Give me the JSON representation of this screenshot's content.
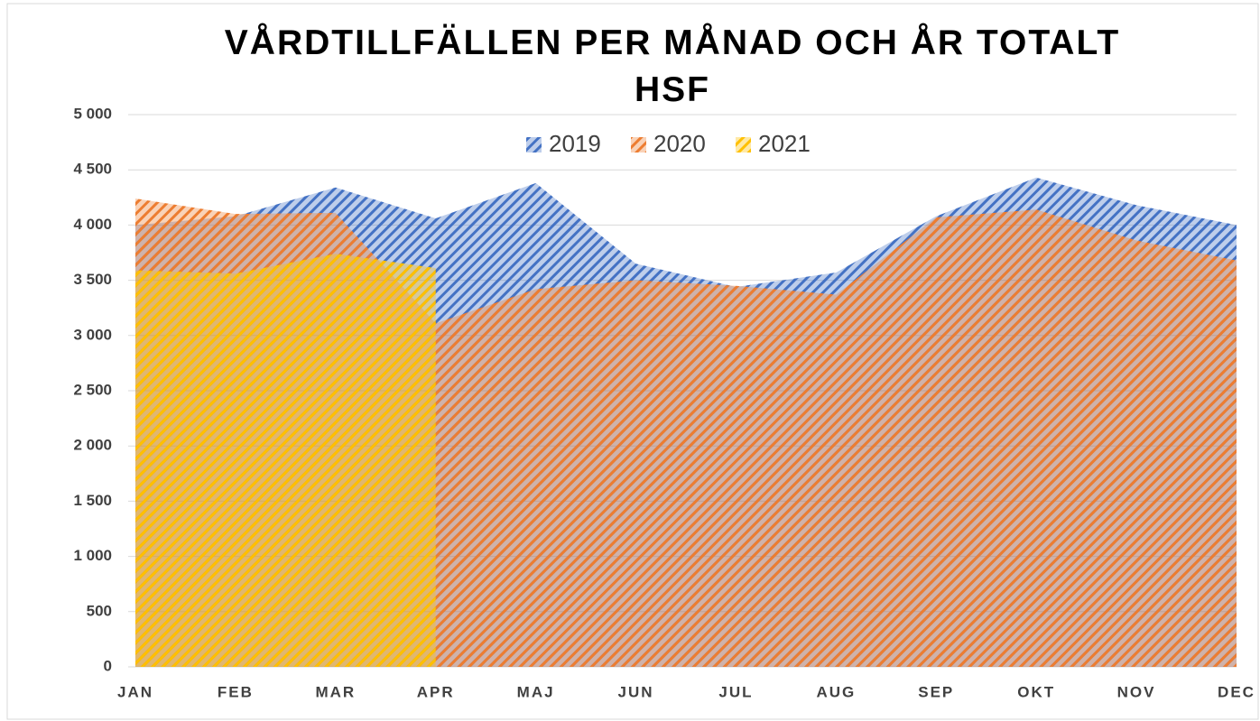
{
  "chart_data": {
    "type": "area",
    "title": "VÅRDTILLFÄLLEN PER MÅNAD OCH ÅR TOTALT HSF",
    "categories": [
      "JAN",
      "FEB",
      "MAR",
      "APR",
      "MAJ",
      "JUN",
      "JUL",
      "AUG",
      "SEP",
      "OKT",
      "NOV",
      "DEC"
    ],
    "series": [
      {
        "name": "2019",
        "color": "#4472c4",
        "values": [
          4000,
          4080,
          4340,
          4060,
          4380,
          3650,
          3440,
          3570,
          4080,
          4430,
          4180,
          4000
        ]
      },
      {
        "name": "2020",
        "color": "#ed7d31",
        "values": [
          4240,
          4100,
          4110,
          3110,
          3420,
          3500,
          3450,
          3370,
          4070,
          4140,
          3860,
          3680
        ]
      },
      {
        "name": "2021",
        "color": "#ffc000",
        "values": [
          3590,
          3560,
          3740,
          3610,
          null,
          null,
          null,
          null,
          null,
          null,
          null,
          null
        ]
      }
    ],
    "ylim": [
      0,
      5000
    ],
    "yticks": [
      0,
      500,
      {
        "value": 1000,
        "label": "1 000"
      },
      {
        "value": 1500,
        "label": "1 500"
      },
      {
        "value": 2000,
        "label": "2 000"
      },
      {
        "value": 2500,
        "label": "2 500"
      },
      {
        "value": 3000,
        "label": "3 000"
      },
      {
        "value": 3500,
        "label": "3 500"
      },
      {
        "value": 4000,
        "label": "4 000"
      },
      {
        "value": 4500,
        "label": "4 500"
      },
      {
        "value": 5000,
        "label": "5 000"
      }
    ],
    "grid": true,
    "legend": "top"
  }
}
